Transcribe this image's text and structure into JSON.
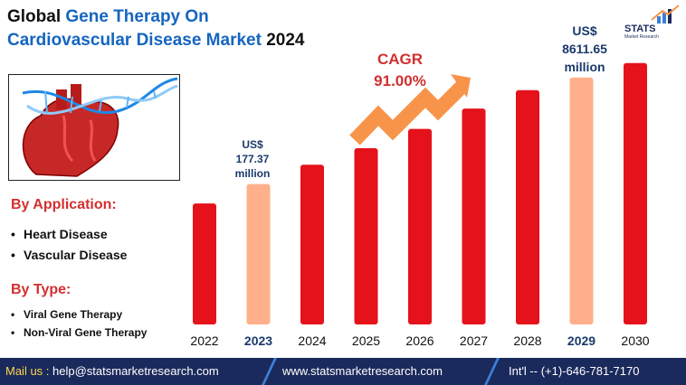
{
  "header": {
    "title_prefix": "Global ",
    "title_highlight": "Gene Therapy On",
    "title_line2_highlight": "Cardiovascular Disease Market",
    "title_year": " 2024"
  },
  "logo": {
    "name": "STATS",
    "tagline": "Market Research"
  },
  "segments": {
    "application_heading": "By Application:",
    "application_items": [
      "Heart Disease",
      "Vascular Disease"
    ],
    "type_heading": "By Type:",
    "type_items": [
      "Viral Gene Therapy",
      "Non-Viral Gene Therapy"
    ]
  },
  "cagr": {
    "label": "CAGR",
    "value": "91.00%"
  },
  "callouts": {
    "value_2023": {
      "currency": "US$",
      "amount": "177.37",
      "unit": "million"
    },
    "value_2029": {
      "currency": "US$",
      "amount": "8611.65",
      "unit": "million"
    }
  },
  "chart_data": {
    "type": "bar",
    "title": "Global Gene Therapy On Cardiovascular Disease Market 2024",
    "categories": [
      "2022",
      "2023",
      "2024",
      "2025",
      "2026",
      "2027",
      "2028",
      "2029",
      "2030"
    ],
    "values": [
      125,
      145,
      165,
      182,
      202,
      223,
      242,
      255,
      270
    ],
    "highlighted": [
      "2023",
      "2029"
    ],
    "ylim": [
      0,
      280
    ],
    "xlabel": "",
    "ylabel": "",
    "grid": false,
    "note": "bar heights are illustrative; only 2023 (US$ 177.37 million) and 2029 (US$ 8611.65 million) are labeled"
  },
  "colors": {
    "bar": "#e5121b",
    "bar_highlight": "#ffb08a",
    "arrow": "#f7944a",
    "title_blue": "#1565c0",
    "heading_red": "#d32f2f",
    "footer_bg": "#1b2a5c"
  },
  "footer": {
    "mail_label": "Mail us : ",
    "mail": "help@statsmarketresearch.com",
    "website": "www.statsmarketresearch.com",
    "phone": "Int'l -- (+1)-646-781-7170"
  }
}
